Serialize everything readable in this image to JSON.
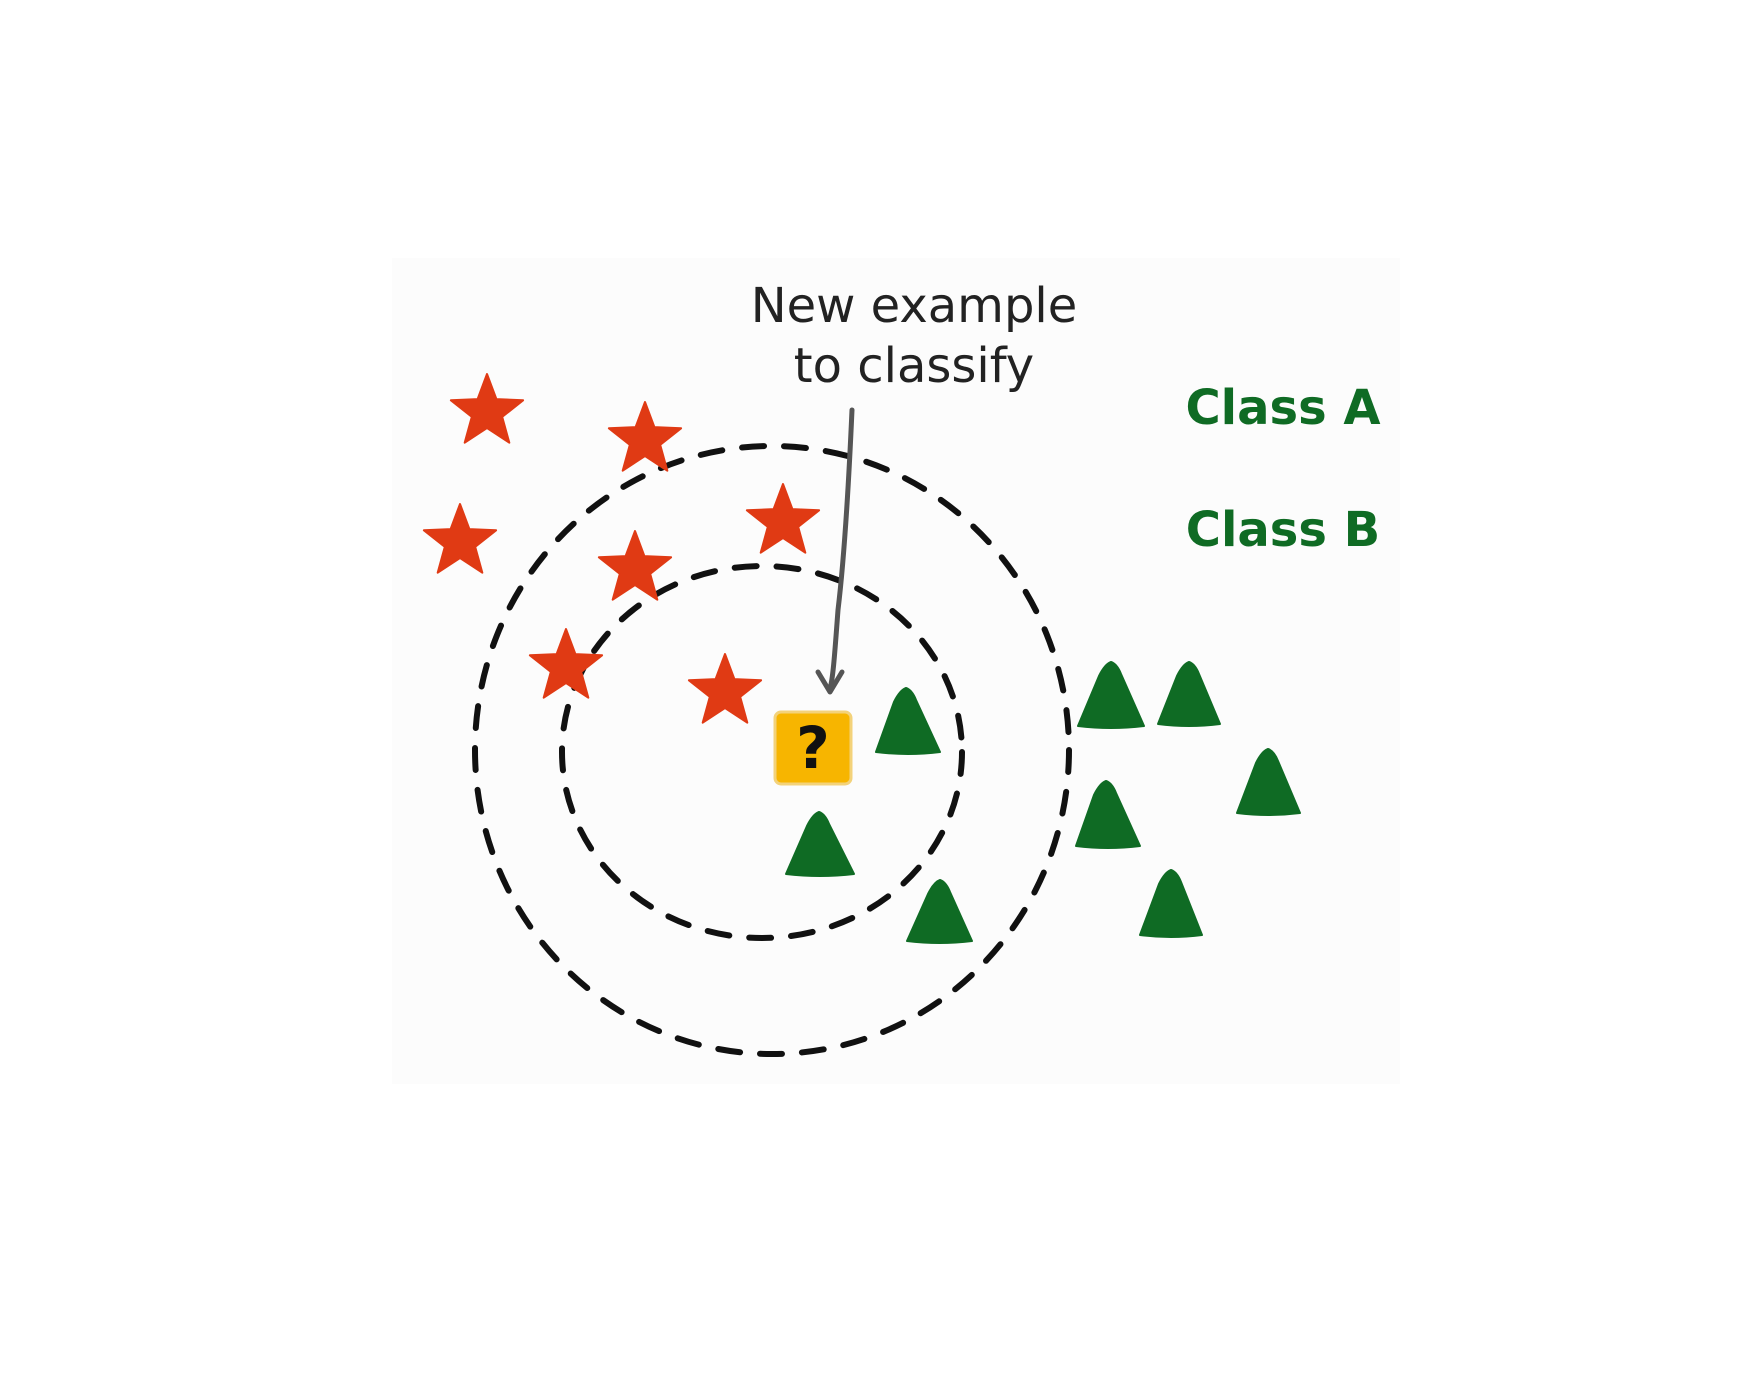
{
  "annotation": {
    "line1": "New example",
    "line2": "to classify"
  },
  "legend": {
    "class_a": "Class A",
    "class_b": "Class B"
  },
  "query": {
    "symbol": "?"
  },
  "colors": {
    "class_a_star": "#e03a14",
    "class_b_triangle": "#0f6b24",
    "legend_text": "#0f6b24",
    "query_fill": "#f7b500",
    "circle_stroke": "#111111",
    "arrow": "#555555"
  },
  "icons": {
    "class_a_marker": "star-icon",
    "class_b_marker": "triangle-icon",
    "query_marker": "question-box-icon"
  }
}
